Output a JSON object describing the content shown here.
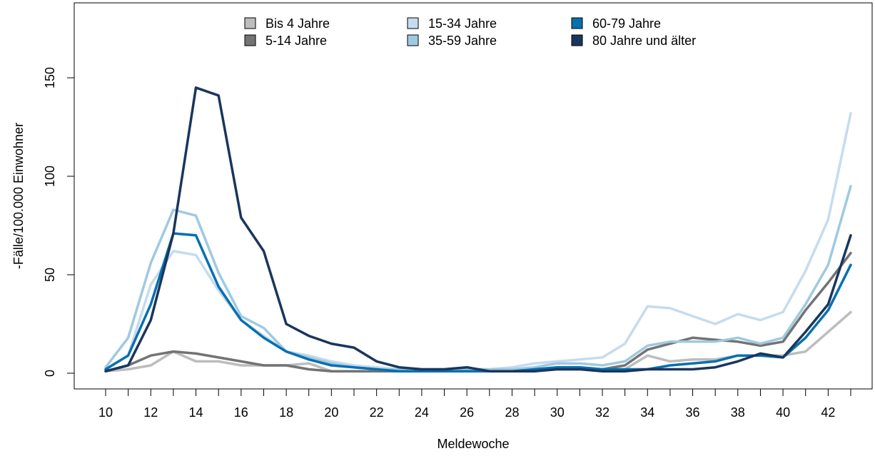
{
  "chart_data": {
    "type": "line",
    "xlabel": "Meldewoche",
    "ylabel": "-Fälle/100.000 Einwohner",
    "xlim": [
      10,
      43
    ],
    "ylim": [
      0,
      180
    ],
    "x_ticks": [
      10,
      12,
      14,
      16,
      18,
      20,
      22,
      24,
      26,
      28,
      30,
      32,
      34,
      36,
      38,
      40,
      42
    ],
    "y_ticks": [
      0,
      50,
      100,
      150
    ],
    "legend_position": "top",
    "grid": false,
    "x": [
      10,
      11,
      12,
      13,
      14,
      15,
      16,
      17,
      18,
      19,
      20,
      21,
      22,
      23,
      24,
      25,
      26,
      27,
      28,
      29,
      30,
      31,
      32,
      33,
      34,
      35,
      36,
      37,
      38,
      39,
      40,
      41,
      42,
      43
    ],
    "series": [
      {
        "name": "Bis 4 Jahre",
        "color": "#bdbdbd",
        "values": [
          1,
          2,
          4,
          11,
          6,
          6,
          4,
          4,
          4,
          5,
          1,
          1,
          1,
          1,
          1,
          1,
          2,
          1,
          1,
          2,
          2,
          3,
          2,
          2,
          9,
          6,
          7,
          7,
          9,
          9,
          9,
          11,
          21,
          31
        ]
      },
      {
        "name": "5-14 Jahre",
        "color": "#737373",
        "values": [
          1,
          4,
          9,
          11,
          10,
          8,
          6,
          4,
          4,
          2,
          1,
          1,
          1,
          1,
          1,
          1,
          2,
          1,
          1,
          2,
          2,
          2,
          2,
          4,
          12,
          15,
          18,
          17,
          16,
          14,
          16,
          32,
          46,
          61
        ]
      },
      {
        "name": "15-34 Jahre",
        "color": "#c6dbef",
        "values": [
          2,
          9,
          45,
          62,
          60,
          42,
          27,
          19,
          11,
          9,
          6,
          4,
          3,
          2,
          2,
          2,
          2,
          2,
          3,
          5,
          6,
          7,
          8,
          15,
          34,
          33,
          29,
          25,
          30,
          27,
          31,
          52,
          78,
          132
        ]
      },
      {
        "name": "35-59 Jahre",
        "color": "#9ecae1",
        "values": [
          3,
          18,
          56,
          83,
          80,
          51,
          29,
          23,
          11,
          8,
          5,
          3,
          2,
          2,
          1,
          1,
          2,
          2,
          2,
          3,
          5,
          5,
          4,
          6,
          14,
          16,
          16,
          16,
          18,
          15,
          18,
          35,
          55,
          95
        ]
      },
      {
        "name": "60-79 Jahre",
        "color": "#0570b0",
        "values": [
          2,
          9,
          35,
          71,
          70,
          44,
          27,
          18,
          11,
          7,
          4,
          3,
          2,
          1,
          1,
          1,
          1,
          1,
          1,
          2,
          3,
          3,
          2,
          2,
          2,
          4,
          5,
          6,
          9,
          9,
          8,
          18,
          32,
          55
        ]
      },
      {
        "name": "80 Jahre und älter",
        "color": "#1a365d",
        "values": [
          1,
          4,
          27,
          71,
          145,
          141,
          79,
          62,
          25,
          19,
          15,
          13,
          6,
          3,
          2,
          2,
          3,
          1,
          1,
          1,
          2,
          2,
          1,
          1,
          2,
          2,
          2,
          3,
          6,
          10,
          8,
          21,
          35,
          70
        ]
      }
    ]
  }
}
